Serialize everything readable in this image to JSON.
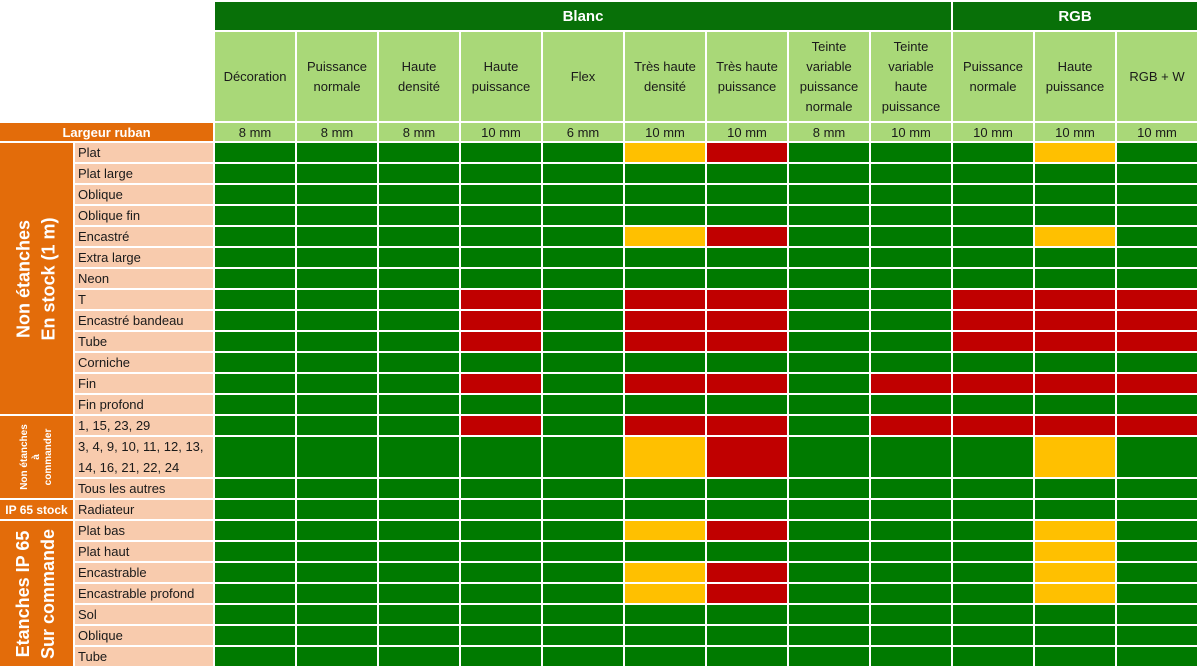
{
  "groups": [
    {
      "label": "Blanc",
      "span": 9
    },
    {
      "label": "RGB",
      "span": 3
    }
  ],
  "columns": [
    {
      "label": "Décoration",
      "width": "8 mm"
    },
    {
      "label": "Puissance\nnormale",
      "width": "8 mm"
    },
    {
      "label": "Haute\ndensité",
      "width": "8 mm"
    },
    {
      "label": "Haute\npuissance",
      "width": "10 mm"
    },
    {
      "label": "Flex",
      "width": "6 mm"
    },
    {
      "label": "Très haute\ndensité",
      "width": "10 mm"
    },
    {
      "label": "Très haute\npuissance",
      "width": "10 mm"
    },
    {
      "label": "Teinte\nvariable\npuissance\nnormale",
      "width": "8 mm"
    },
    {
      "label": "Teinte\nvariable\nhaute\npuissance",
      "width": "10 mm"
    },
    {
      "label": "Puissance\nnormale",
      "width": "10 mm"
    },
    {
      "label": "Haute\npuissance",
      "width": "10 mm"
    },
    {
      "label": "RGB + W",
      "width": "10 mm"
    }
  ],
  "width_label": "Largeur ruban",
  "colors": {
    "G": "#007a00",
    "Y": "#ffc000",
    "R": "#c00000",
    "header_green": "#087008",
    "light_green": "#a9d878",
    "orange": "#e36c0a",
    "peach": "#f8cbad"
  },
  "sections": [
    {
      "label": "Non étanches\nEn stock (1 m)",
      "style": "rot-big",
      "rows": [
        {
          "label": "Plat",
          "status": "GGGGGYRGGGYG"
        },
        {
          "label": "Plat large",
          "status": "GGGGGGGGGGGG"
        },
        {
          "label": "Oblique",
          "status": "GGGGGGGGGGGG"
        },
        {
          "label": "Oblique fin",
          "status": "GGGGGGGGGGGG"
        },
        {
          "label": "Encastré",
          "status": "GGGGGYRGGGYG"
        },
        {
          "label": "Extra large",
          "status": "GGGGGGGGGGGG"
        },
        {
          "label": "Neon",
          "status": "GGGGGGGGGGGG"
        },
        {
          "label": "T",
          "status": "GGGRGRRGGRRR"
        },
        {
          "label": "Encastré bandeau",
          "status": "GGGRGRRGGRRR"
        },
        {
          "label": "Tube",
          "status": "GGGRGRRGGRRR"
        },
        {
          "label": "Corniche",
          "status": "GGGGGGGGGGGG"
        },
        {
          "label": "Fin",
          "status": "GGGRGRRGRRRR"
        },
        {
          "label": "Fin profond",
          "status": "GGGGGGGGGGGG"
        }
      ]
    },
    {
      "label": "Non étanches\nà\ncommander",
      "style": "rot-small",
      "rows": [
        {
          "label": "1, 15, 23, 29",
          "status": "GGGRGRRGRRRR"
        },
        {
          "label": "3, 4, 9, 10, 11, 12, 13,\n14, 16, 21, 22, 24",
          "status": "GGGGGYRGGGYG",
          "tall": true
        },
        {
          "label": "Tous les autres",
          "status": "GGGGGGGGGGGG"
        }
      ]
    },
    {
      "label": "IP 65 stock",
      "style": "flat",
      "rows": [
        {
          "label": "Radiateur",
          "status": "GGGGGGGGGGGG"
        }
      ]
    },
    {
      "label": "Etanches IP 65\nSur commande",
      "style": "rot-big",
      "rows": [
        {
          "label": "Plat bas",
          "status": "GGGGGYRGGGYG"
        },
        {
          "label": "Plat haut",
          "status": "GGGGGGGGGGYG"
        },
        {
          "label": "Encastrable",
          "status": "GGGGGYRGGGYG"
        },
        {
          "label": "Encastrable profond",
          "status": "GGGGGYRGGGYG"
        },
        {
          "label": "Sol",
          "status": "GGGGGGGGGGGG"
        },
        {
          "label": "Oblique",
          "status": "GGGGGGGGGGGG"
        },
        {
          "label": "Tube",
          "status": "GGGGGGGGGGGG"
        }
      ]
    }
  ]
}
